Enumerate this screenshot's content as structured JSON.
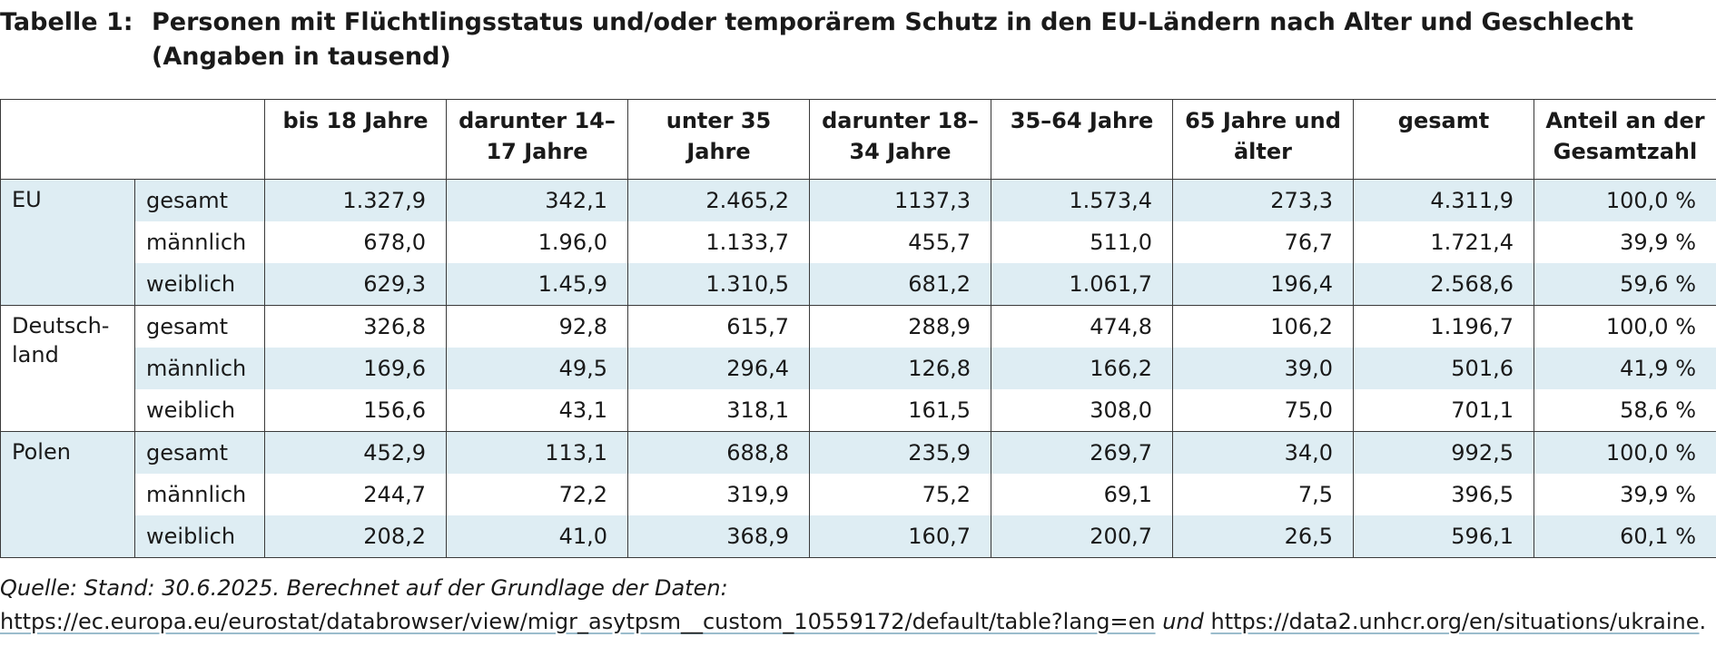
{
  "caption": {
    "label": "Tabelle 1:",
    "title": "Personen mit Flüchtlingsstatus und/oder temporärem Schutz in den EU-Ländern nach Alter und Geschlecht (Angaben in tausend)"
  },
  "columns": [
    "bis 18 Jahre",
    "darunter 14–17 Jahre",
    "unter 35 Jahre",
    "darunter 18–34 Jahre",
    "35–64 Jahre",
    "65 Jahre und älter",
    "gesamt",
    "Anteil an der Gesamtzahl"
  ],
  "groups": [
    {
      "country": "EU",
      "rows": [
        {
          "sex": "gesamt",
          "values": [
            "1.327,9",
            "342,1",
            "2.465,2",
            "1137,3",
            "1.573,4",
            "273,3",
            "4.311,9",
            "100,0 %"
          ]
        },
        {
          "sex": "männlich",
          "values": [
            "678,0",
            "1.96,0",
            "1.133,7",
            "455,7",
            "511,0",
            "76,7",
            "1.721,4",
            "39,9 %"
          ]
        },
        {
          "sex": "weiblich",
          "values": [
            "629,3",
            "1.45,9",
            "1.310,5",
            "681,2",
            "1.061,7",
            "196,4",
            "2.568,6",
            "59,6 %"
          ]
        }
      ]
    },
    {
      "country": "Deutsch-land",
      "rows": [
        {
          "sex": "gesamt",
          "values": [
            "326,8",
            "92,8",
            "615,7",
            "288,9",
            "474,8",
            "106,2",
            "1.196,7",
            "100,0 %"
          ]
        },
        {
          "sex": "männlich",
          "values": [
            "169,6",
            "49,5",
            "296,4",
            "126,8",
            "166,2",
            "39,0",
            "501,6",
            "41,9 %"
          ]
        },
        {
          "sex": "weiblich",
          "values": [
            "156,6",
            "43,1",
            "318,1",
            "161,5",
            "308,0",
            "75,0",
            "701,1",
            "58,6 %"
          ]
        }
      ]
    },
    {
      "country": "Polen",
      "rows": [
        {
          "sex": "gesamt",
          "values": [
            "452,9",
            "113,1",
            "688,8",
            "235,9",
            "269,7",
            "34,0",
            "992,5",
            "100,0 %"
          ]
        },
        {
          "sex": "männlich",
          "values": [
            "244,7",
            "72,2",
            "319,9",
            "75,2",
            "69,1",
            "7,5",
            "396,5",
            "39,9 %"
          ]
        },
        {
          "sex": "weiblich",
          "values": [
            "208,2",
            "41,0",
            "368,9",
            "160,7",
            "200,7",
            "26,5",
            "596,1",
            "60,1 %"
          ]
        }
      ]
    }
  ],
  "source": {
    "lead": "Quelle: Stand: 30.6.2025. Berechnet auf der Grundlage der Daten:",
    "link1": "https://ec.europa.eu/eurostat/databrowser/view/migr_asytpsm__custom_10559172/default/table?lang=en",
    "mid": "und",
    "link2": "https://data2.unhcr.org/en/situations/ukraine",
    "end": "."
  },
  "colors": {
    "row_shade": "#deedf3",
    "border": "#3a3a3a"
  }
}
